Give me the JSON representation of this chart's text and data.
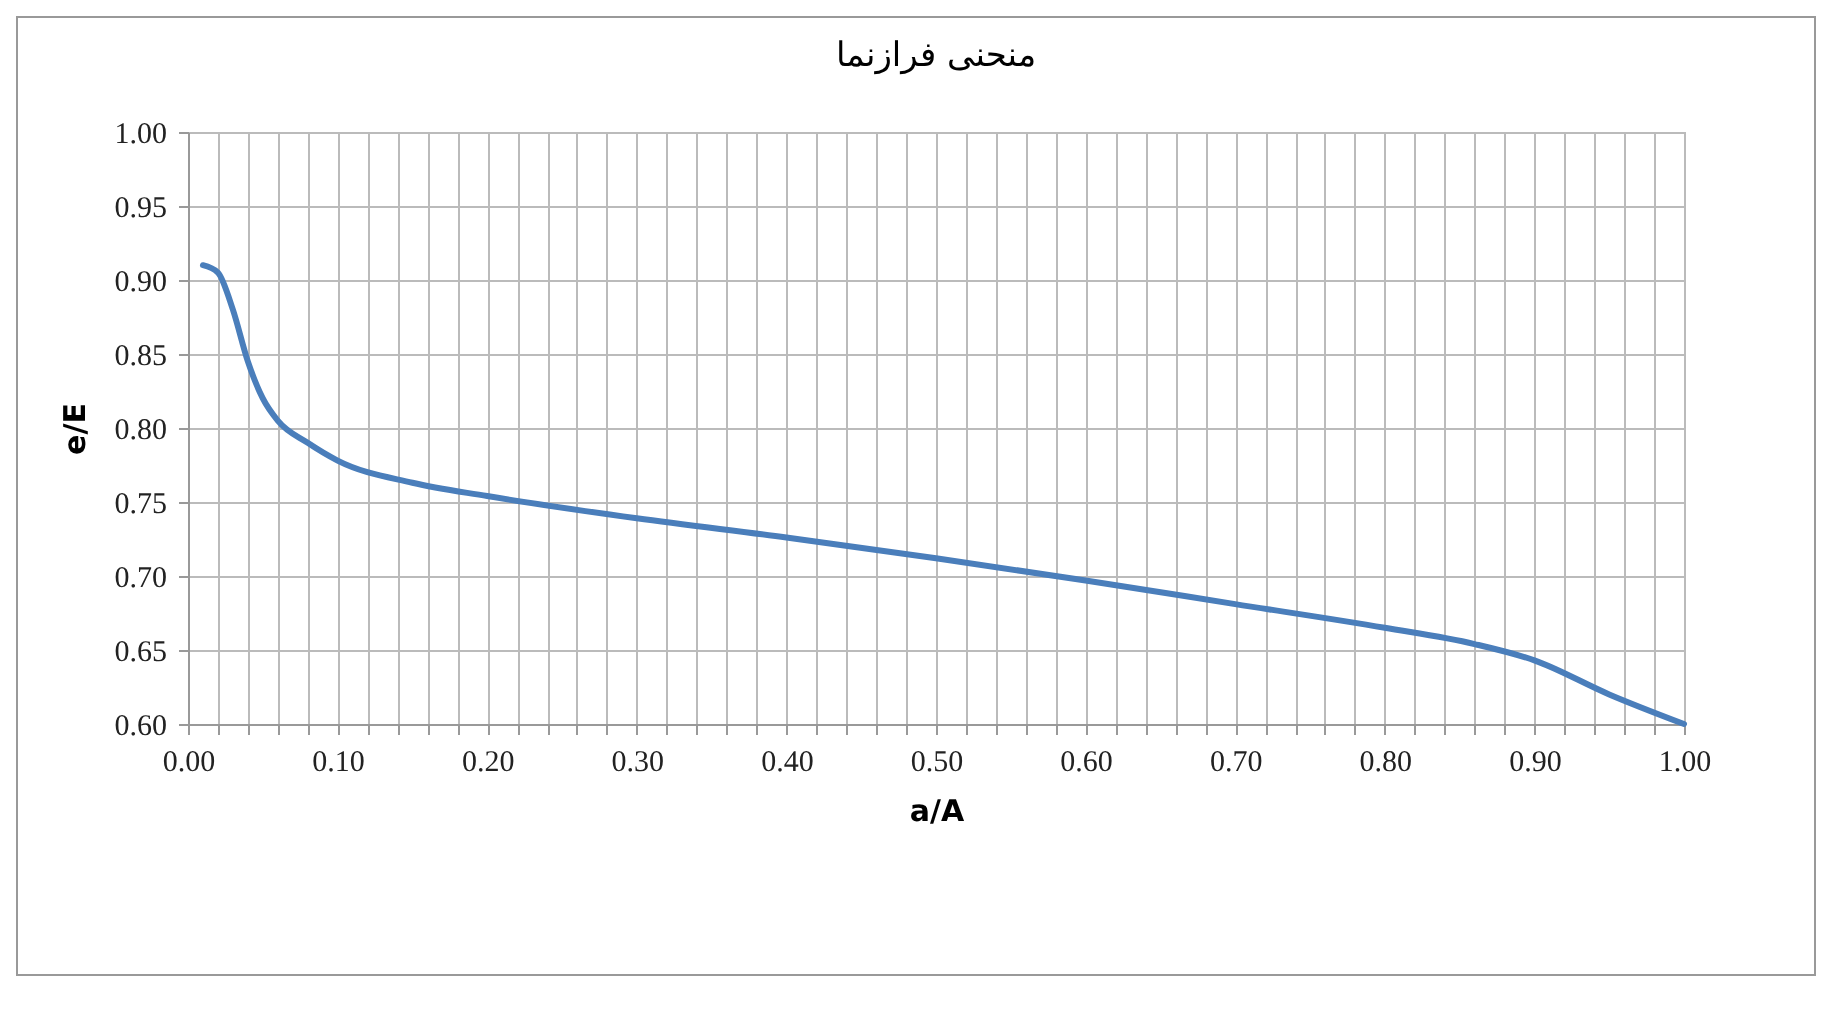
{
  "chart_data": {
    "type": "line",
    "title": "منحنی فرازنما",
    "xlabel": "a/A",
    "ylabel": "e/E",
    "x": [
      0.01,
      0.02,
      0.03,
      0.04,
      0.05,
      0.06,
      0.08,
      0.1,
      0.15,
      0.2,
      0.3,
      0.4,
      0.5,
      0.6,
      0.7,
      0.8,
      0.86,
      0.9,
      0.95,
      1.0
    ],
    "series": [
      {
        "color": "#4a7ebb",
        "values": [
          0.91,
          0.905,
          0.88,
          0.845,
          0.82,
          0.805,
          0.79,
          0.778,
          0.763,
          0.754,
          0.739,
          0.726,
          0.712,
          0.697,
          0.681,
          0.665,
          0.654,
          0.643,
          0.62,
          0.6
        ]
      }
    ],
    "xlim": [
      0,
      1
    ],
    "ylim": [
      0.6,
      1.0
    ],
    "xticks": [
      {
        "value": 0,
        "label": "0.00"
      },
      {
        "value": 0.02,
        "label": null
      },
      {
        "value": 0.04,
        "label": null
      },
      {
        "value": 0.06,
        "label": null
      },
      {
        "value": 0.08,
        "label": null
      },
      {
        "value": 0.1,
        "label": "0.10"
      },
      {
        "value": 0.12,
        "label": null
      },
      {
        "value": 0.14,
        "label": null
      },
      {
        "value": 0.16,
        "label": null
      },
      {
        "value": 0.18,
        "label": null
      },
      {
        "value": 0.2,
        "label": "0.20"
      },
      {
        "value": 0.22,
        "label": null
      },
      {
        "value": 0.24,
        "label": null
      },
      {
        "value": 0.26,
        "label": null
      },
      {
        "value": 0.28,
        "label": null
      },
      {
        "value": 0.3,
        "label": "0.30"
      },
      {
        "value": 0.32,
        "label": null
      },
      {
        "value": 0.34,
        "label": null
      },
      {
        "value": 0.36,
        "label": null
      },
      {
        "value": 0.38,
        "label": null
      },
      {
        "value": 0.4,
        "label": "0.40"
      },
      {
        "value": 0.42,
        "label": null
      },
      {
        "value": 0.44,
        "label": null
      },
      {
        "value": 0.46,
        "label": null
      },
      {
        "value": 0.48,
        "label": null
      },
      {
        "value": 0.5,
        "label": "0.50"
      },
      {
        "value": 0.52,
        "label": null
      },
      {
        "value": 0.54,
        "label": null
      },
      {
        "value": 0.56,
        "label": null
      },
      {
        "value": 0.58,
        "label": null
      },
      {
        "value": 0.6,
        "label": "0.60"
      },
      {
        "value": 0.62,
        "label": null
      },
      {
        "value": 0.64,
        "label": null
      },
      {
        "value": 0.66,
        "label": null
      },
      {
        "value": 0.68,
        "label": null
      },
      {
        "value": 0.7,
        "label": "0.70"
      },
      {
        "value": 0.72,
        "label": null
      },
      {
        "value": 0.74,
        "label": null
      },
      {
        "value": 0.76,
        "label": null
      },
      {
        "value": 0.78,
        "label": null
      },
      {
        "value": 0.8,
        "label": "0.80"
      },
      {
        "value": 0.82,
        "label": null
      },
      {
        "value": 0.84,
        "label": null
      },
      {
        "value": 0.86,
        "label": null
      },
      {
        "value": 0.88,
        "label": null
      },
      {
        "value": 0.9,
        "label": "0.90"
      },
      {
        "value": 0.92,
        "label": null
      },
      {
        "value": 0.94,
        "label": null
      },
      {
        "value": 0.96,
        "label": null
      },
      {
        "value": 0.98,
        "label": null
      },
      {
        "value": 1,
        "label": "1.00"
      }
    ],
    "yticks": [
      {
        "value": 0.6,
        "label": "0.60"
      },
      {
        "value": 0.65,
        "label": "0.65"
      },
      {
        "value": 0.7,
        "label": "0.70"
      },
      {
        "value": 0.75,
        "label": "0.75"
      },
      {
        "value": 0.8,
        "label": "0.80"
      },
      {
        "value": 0.85,
        "label": "0.85"
      },
      {
        "value": 0.9,
        "label": "0.90"
      },
      {
        "value": 0.95,
        "label": "0.95"
      },
      {
        "value": 1.0,
        "label": "1.00"
      }
    ],
    "grid": true,
    "legend": false,
    "marker": "none",
    "line_style": "solid"
  }
}
